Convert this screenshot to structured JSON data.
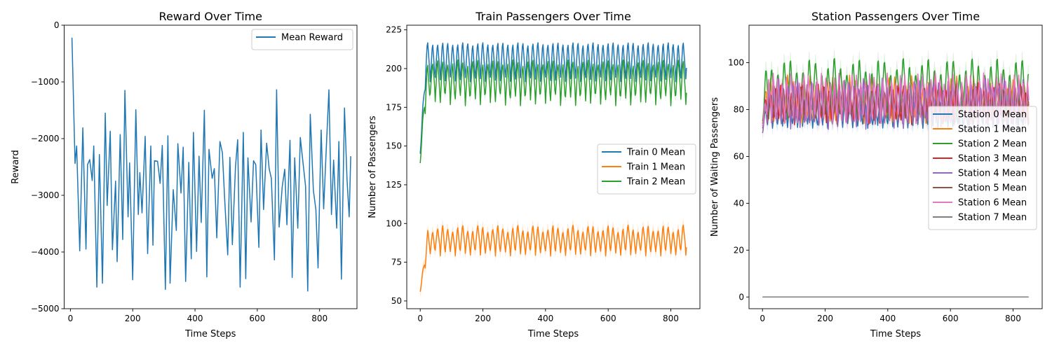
{
  "chart_data": [
    {
      "type": "line",
      "title": "Reward Over Time",
      "xlabel": "Time Steps",
      "ylabel": "Reward",
      "xlim": [
        -20,
        920
      ],
      "ylim": [
        -5000,
        0
      ],
      "xticks": [
        0,
        200,
        400,
        600,
        800
      ],
      "yticks": [
        -5000,
        -4000,
        -3000,
        -2000,
        -1000,
        0
      ],
      "legend": "top-right",
      "grid": false,
      "series": [
        {
          "name": "Mean Reward",
          "color": "#1f77b4",
          "x": [
            5,
            15,
            20,
            30,
            40,
            50,
            55,
            62,
            70,
            75,
            85,
            93,
            103,
            112,
            118,
            128,
            135,
            145,
            150,
            160,
            168,
            175,
            185,
            190,
            200,
            210,
            218,
            223,
            230,
            240,
            248,
            258,
            265,
            270,
            280,
            288,
            295,
            305,
            313,
            320,
            330,
            340,
            345,
            355,
            362,
            370,
            380,
            388,
            395,
            405,
            413,
            420,
            430,
            438,
            445,
            455,
            462,
            470,
            480,
            488,
            495,
            505,
            512,
            520,
            530,
            537,
            545,
            555,
            563,
            570,
            580,
            588,
            595,
            605,
            612,
            620,
            630,
            638,
            645,
            655,
            662,
            670,
            680,
            688,
            695,
            705,
            712,
            720,
            730,
            738,
            745,
            755,
            762,
            770,
            780,
            788,
            795,
            805,
            813,
            820,
            830,
            838,
            845,
            855,
            862,
            870,
            880,
            888,
            895,
            900
          ],
          "y": [
            -220,
            -2440,
            -2130,
            -3980,
            -1810,
            -3950,
            -2460,
            -2370,
            -2740,
            -2130,
            -4620,
            -2280,
            -4550,
            -1550,
            -3180,
            -1870,
            -3960,
            -2750,
            -4170,
            -1930,
            -3780,
            -1150,
            -3380,
            -2430,
            -4490,
            -1490,
            -3340,
            -2600,
            -3310,
            -1960,
            -4030,
            -2130,
            -3880,
            -2390,
            -2400,
            -2790,
            -2120,
            -4660,
            -1950,
            -4550,
            -2900,
            -3620,
            -2090,
            -2960,
            -2150,
            -4520,
            -2420,
            -4120,
            -1890,
            -3990,
            -2310,
            -3480,
            -1500,
            -4440,
            -2190,
            -2700,
            -2530,
            -3750,
            -2050,
            -2250,
            -3030,
            -4050,
            -2330,
            -3870,
            -2490,
            -2020,
            -4620,
            -1890,
            -4470,
            -2340,
            -3470,
            -2390,
            -2460,
            -3920,
            -1850,
            -3250,
            -2080,
            -2530,
            -2700,
            -4140,
            -1140,
            -3560,
            -2850,
            -2540,
            -3520,
            -2030,
            -4450,
            -2340,
            -3580,
            -1980,
            -2340,
            -2840,
            -4690,
            -1570,
            -2910,
            -3250,
            -4280,
            -1850,
            -3240,
            -2350,
            -1140,
            -3340,
            -2380,
            -3580,
            -2050,
            -4480,
            -1460,
            -2720,
            -3380,
            -2310
          ]
        }
      ]
    },
    {
      "type": "line",
      "title": "Train Passengers Over Time",
      "xlabel": "Time Steps",
      "ylabel": "Number of Passengers",
      "xlim": [
        -43,
        893
      ],
      "ylim": [
        45,
        228
      ],
      "xticks": [
        0,
        200,
        400,
        600,
        800
      ],
      "yticks": [
        50,
        75,
        100,
        125,
        150,
        175,
        200,
        225
      ],
      "legend": "center-right",
      "grid": false,
      "series": [
        {
          "name": "Train 0 Mean",
          "color": "#1f77b4"
        },
        {
          "name": "Train 1 Mean",
          "color": "#ff7f0e"
        },
        {
          "name": "Train 2 Mean",
          "color": "#2ca02c"
        }
      ]
    },
    {
      "type": "line",
      "title": "Station Passengers Over Time",
      "xlabel": "Time Steps",
      "ylabel": "Number of Waiting Passengers",
      "xlim": [
        -43,
        893
      ],
      "ylim": [
        -5,
        116
      ],
      "xticks": [
        0,
        200,
        400,
        600,
        800
      ],
      "yticks": [
        0,
        20,
        40,
        60,
        80,
        100
      ],
      "legend": "center-right",
      "grid": false,
      "series": [
        {
          "name": "Station 0 Mean",
          "color": "#1f77b4"
        },
        {
          "name": "Station 1 Mean",
          "color": "#ff7f0e"
        },
        {
          "name": "Station 2 Mean",
          "color": "#2ca02c"
        },
        {
          "name": "Station 3 Mean",
          "color": "#d62728"
        },
        {
          "name": "Station 4 Mean",
          "color": "#9467bd"
        },
        {
          "name": "Station 5 Mean",
          "color": "#8c564b"
        },
        {
          "name": "Station 6 Mean",
          "color": "#e377c2"
        },
        {
          "name": "Station 7 Mean",
          "color": "#7f7f7f"
        }
      ]
    }
  ]
}
